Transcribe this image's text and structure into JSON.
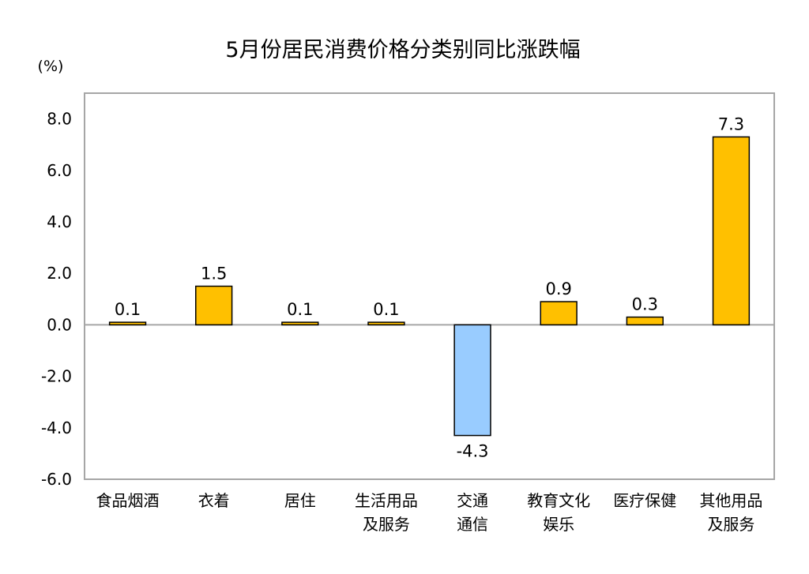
{
  "chart_data": {
    "type": "bar",
    "title": "5月份居民消费价格分类别同比涨跌幅",
    "unit_label": "(%)",
    "categories": [
      [
        "食品烟酒"
      ],
      [
        "衣着"
      ],
      [
        "居住"
      ],
      [
        "生活用品",
        "及服务"
      ],
      [
        "交通",
        "通信"
      ],
      [
        "教育文化",
        "娱乐"
      ],
      [
        "医疗保健"
      ],
      [
        "其他用品",
        "及服务"
      ]
    ],
    "values": [
      0.1,
      1.5,
      0.1,
      0.1,
      -4.3,
      0.9,
      0.3,
      7.3
    ],
    "value_labels": [
      "0.1",
      "1.5",
      "0.1",
      "0.1",
      "-4.3",
      "0.9",
      "0.3",
      "7.3"
    ],
    "ylim": [
      -6.0,
      9.0
    ],
    "yticks": [
      8.0,
      6.0,
      4.0,
      2.0,
      0.0,
      -2.0,
      -4.0,
      -6.0
    ],
    "ytick_labels": [
      "8.0",
      "6.0",
      "4.0",
      "2.0",
      "0.0",
      "-2.0",
      "-4.0",
      "-6.0"
    ],
    "grid": false,
    "legend": "none",
    "colors": {
      "positive": "#FFC000",
      "negative": "#99CCFF",
      "bar_outline": "#000000",
      "frame": "#A6A6A6",
      "zero_line": "#A6A6A6"
    }
  }
}
